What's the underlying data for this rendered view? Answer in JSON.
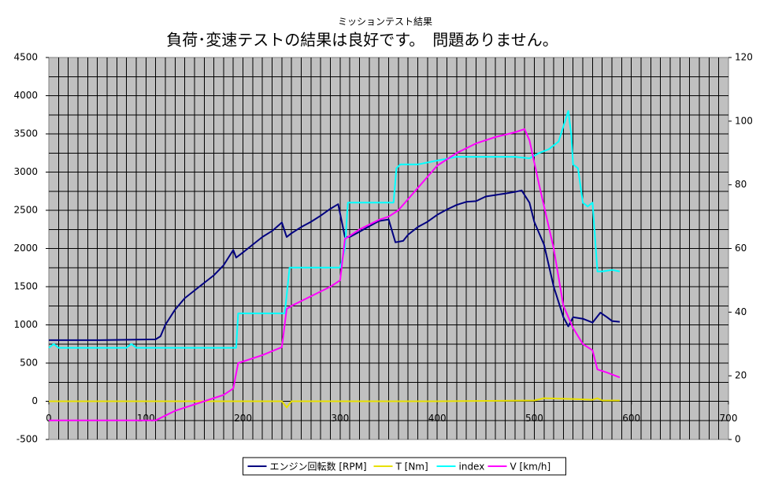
{
  "chart_data": {
    "type": "line",
    "title": "ミッションテスト結果",
    "subtitle": "負荷･変速テストの結果は良好です。　問題ありません。",
    "xlim": [
      0,
      700
    ],
    "xticks": [
      0,
      100,
      200,
      300,
      400,
      500,
      600,
      700
    ],
    "ylim": [
      -500,
      4500
    ],
    "yticks": [
      -500,
      0,
      500,
      1000,
      1500,
      2000,
      2500,
      3000,
      3500,
      4000,
      4500
    ],
    "y2lim": [
      0,
      120
    ],
    "y2ticks": [
      0,
      20,
      40,
      60,
      80,
      100,
      120
    ],
    "grid": true,
    "minor_grid": {
      "x": 10,
      "y": 250
    },
    "legend": "bottom",
    "series": [
      {
        "name": "エンジン回転数 [RPM]",
        "color": "#000080",
        "x": [
          0,
          50,
          110,
          115,
          120,
          130,
          140,
          150,
          160,
          170,
          180,
          190,
          193,
          200,
          210,
          220,
          230,
          240,
          245,
          250,
          260,
          270,
          280,
          290,
          298,
          305,
          310,
          320,
          330,
          340,
          350,
          357,
          365,
          370,
          380,
          390,
          400,
          410,
          420,
          430,
          440,
          450,
          460,
          470,
          480,
          487,
          495,
          500,
          510,
          520,
          530,
          535,
          540,
          550,
          560,
          568,
          575,
          580,
          588
        ],
        "values": [
          800,
          800,
          810,
          850,
          1000,
          1200,
          1350,
          1450,
          1550,
          1650,
          1780,
          1980,
          1880,
          1950,
          2050,
          2150,
          2230,
          2340,
          2150,
          2200,
          2280,
          2350,
          2430,
          2520,
          2580,
          2150,
          2150,
          2220,
          2290,
          2360,
          2380,
          2080,
          2100,
          2180,
          2280,
          2350,
          2440,
          2510,
          2570,
          2610,
          2620,
          2680,
          2700,
          2720,
          2740,
          2760,
          2600,
          2350,
          2050,
          1500,
          1100,
          980,
          1100,
          1080,
          1030,
          1160,
          1100,
          1050,
          1040
        ]
      },
      {
        "name": "T [Nm]",
        "color": "#e8e000",
        "x": [
          0,
          100,
          200,
          240,
          245,
          250,
          300,
          400,
          500,
          510,
          540,
          560,
          565,
          570,
          588
        ],
        "values": [
          0,
          0,
          0,
          0,
          -80,
          0,
          0,
          0,
          10,
          40,
          30,
          20,
          40,
          10,
          10
        ]
      },
      {
        "name": "index",
        "color": "#00ffff",
        "x": [
          0,
          5,
          10,
          80,
          85,
          90,
          190,
          193,
          195,
          240,
          243,
          248,
          300,
          305,
          308,
          350,
          355,
          358,
          362,
          380,
          400,
          420,
          450,
          480,
          495,
          505,
          515,
          525,
          530,
          535,
          538,
          540,
          545,
          550,
          555,
          560,
          565,
          570,
          580,
          588
        ],
        "values": [
          700,
          750,
          700,
          700,
          750,
          700,
          700,
          700,
          1150,
          1150,
          1150,
          1750,
          1750,
          2000,
          2600,
          2600,
          2600,
          3050,
          3100,
          3100,
          3150,
          3200,
          3200,
          3200,
          3180,
          3250,
          3300,
          3400,
          3600,
          3800,
          3500,
          3100,
          3050,
          2600,
          2550,
          2600,
          1700,
          1700,
          1720,
          1700
        ]
      },
      {
        "name": "V [km/h]",
        "color": "#ff00ff",
        "axis": "y2",
        "x": [
          0,
          50,
          110,
          120,
          130,
          140,
          150,
          160,
          170,
          180,
          190,
          195,
          200,
          220,
          240,
          245,
          250,
          270,
          290,
          300,
          305,
          320,
          340,
          350,
          355,
          360,
          380,
          400,
          420,
          440,
          460,
          480,
          490,
          495,
          505,
          520,
          530,
          540,
          550,
          560,
          565,
          575,
          588
        ],
        "values": [
          6,
          6,
          6,
          7.5,
          9,
          10,
          11,
          12,
          13,
          14,
          16,
          24,
          24.5,
          26.5,
          29,
          41,
          42,
          45,
          48,
          50,
          63,
          66,
          69,
          70,
          71,
          72,
          79,
          86,
          90,
          93,
          95,
          96.5,
          97.5,
          94,
          80,
          60,
          42,
          35,
          30,
          28,
          22,
          21,
          19.5
        ]
      }
    ]
  }
}
